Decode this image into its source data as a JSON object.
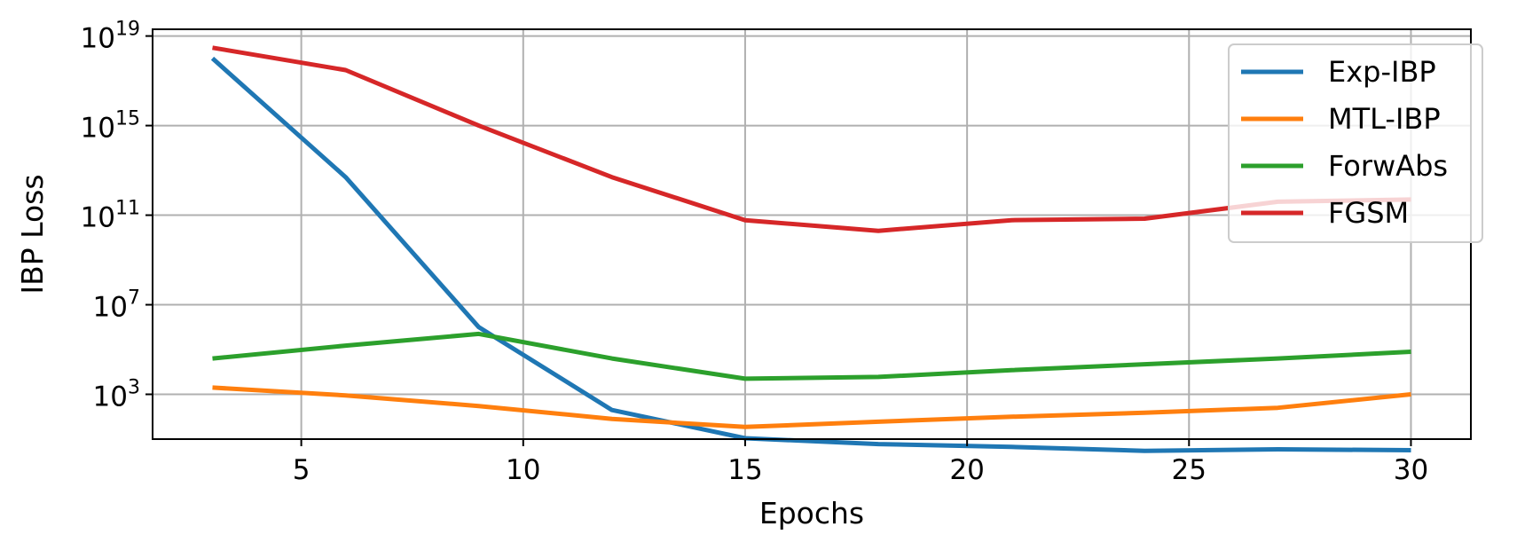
{
  "chart_data": {
    "type": "line",
    "xlabel": "Epochs",
    "ylabel": "IBP Loss",
    "x": [
      3,
      6,
      9,
      12,
      15,
      18,
      21,
      24,
      27,
      30
    ],
    "xlim": [
      1.65,
      31.35
    ],
    "ylim": [
      10.0,
      2e+19
    ],
    "yscale": "log",
    "xticks": [
      5,
      10,
      15,
      20,
      25,
      30
    ],
    "xtick_labels": [
      "5",
      "10",
      "15",
      "20",
      "25",
      "30"
    ],
    "yticks": [
      {
        "value": 1e+19,
        "base": "10",
        "exp": "19"
      },
      {
        "value": 1000000000000000.0,
        "base": "10",
        "exp": "15"
      },
      {
        "value": 100000000000.0,
        "base": "10",
        "exp": "11"
      },
      {
        "value": 10000000.0,
        "base": "10",
        "exp": "7"
      },
      {
        "value": 1000.0,
        "base": "10",
        "exp": "3"
      }
    ],
    "grid": true,
    "legend_position": "top-right",
    "series": [
      {
        "name": "Exp-IBP",
        "color": "#1f77b4",
        "values": [
          1e+18,
          5000000000000.0,
          1000000.0,
          200.0,
          11.0,
          6.0,
          4.5,
          3.0,
          3.5,
          3.2
        ]
      },
      {
        "name": "MTL-IBP",
        "color": "#ff7f0e",
        "values": [
          2000.0,
          900.0,
          300.0,
          80.0,
          35.0,
          60.0,
          100.0,
          150.0,
          250.0,
          1000.0
        ]
      },
      {
        "name": "ForwAbs",
        "color": "#2ca02c",
        "values": [
          40000.0,
          150000.0,
          500000.0,
          40000.0,
          5000.0,
          6000.0,
          12000.0,
          22000.0,
          40000.0,
          80000.0
        ]
      },
      {
        "name": "FGSM",
        "color": "#d62728",
        "values": [
          3e+18,
          3e+17,
          1000000000000000.0,
          5000000000000.0,
          60000000000.0,
          20000000000.0,
          60000000000.0,
          70000000000.0,
          400000000000.0,
          500000000000.0
        ]
      }
    ]
  }
}
